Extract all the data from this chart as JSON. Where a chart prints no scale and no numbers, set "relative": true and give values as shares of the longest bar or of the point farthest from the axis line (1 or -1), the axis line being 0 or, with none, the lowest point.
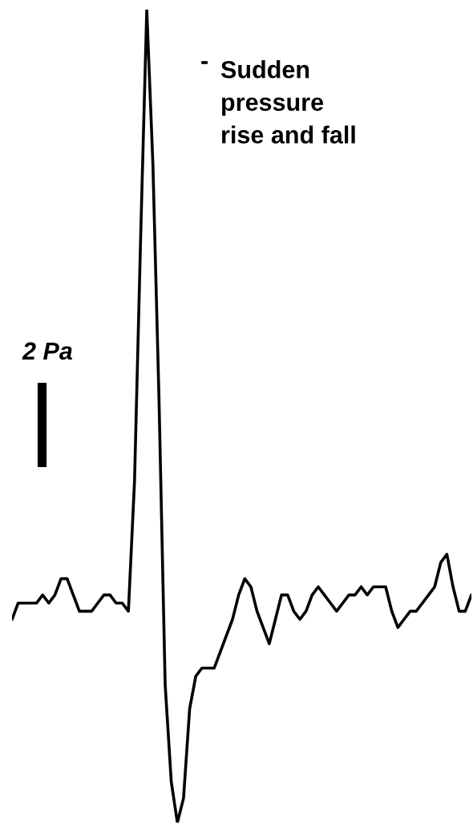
{
  "chart_data": {
    "type": "line",
    "relative": true,
    "color": "#000000",
    "categories": [
      null,
      null,
      null,
      null,
      null,
      null,
      null,
      null,
      null,
      null,
      null,
      null,
      null,
      null,
      null,
      null,
      null,
      null,
      null,
      null,
      null,
      null,
      null,
      null,
      null,
      null,
      null,
      null,
      null,
      null,
      null,
      null,
      null,
      null,
      null,
      null,
      null,
      null,
      null,
      null,
      null,
      null,
      null,
      null,
      null,
      null,
      null,
      null,
      null,
      null,
      null,
      null,
      null,
      null,
      null,
      null,
      null,
      null,
      null,
      null,
      null,
      null,
      null,
      null,
      null,
      null,
      null,
      null,
      null,
      null,
      null,
      null,
      null,
      null,
      null,
      null
    ],
    "values": [
      0.25,
      0.27,
      0.27,
      0.27,
      0.27,
      0.28,
      0.27,
      0.28,
      0.3,
      0.3,
      0.28,
      0.26,
      0.26,
      0.26,
      0.27,
      0.28,
      0.28,
      0.27,
      0.27,
      0.26,
      0.42,
      0.72,
      1.0,
      0.81,
      0.52,
      0.17,
      0.05,
      0,
      0.03,
      0.14,
      0.18,
      0.19,
      0.19,
      0.19,
      0.21,
      0.23,
      0.25,
      0.28,
      0.3,
      0.29,
      0.26,
      0.24,
      0.22,
      0.25,
      0.28,
      0.28,
      0.26,
      0.25,
      0.26,
      0.28,
      0.29,
      0.28,
      0.27,
      0.26,
      0.27,
      0.28,
      0.28,
      0.29,
      0.28,
      0.29,
      0.29,
      0.29,
      0.26,
      0.24,
      0.25,
      0.26,
      0.26,
      0.27,
      0.28,
      0.29,
      0.32,
      0.33,
      0.29,
      0.26,
      0.26,
      0.28
    ],
    "annotations": [
      "2 Pa",
      "-",
      "Sudden\npressure\nrise and fall"
    ]
  }
}
